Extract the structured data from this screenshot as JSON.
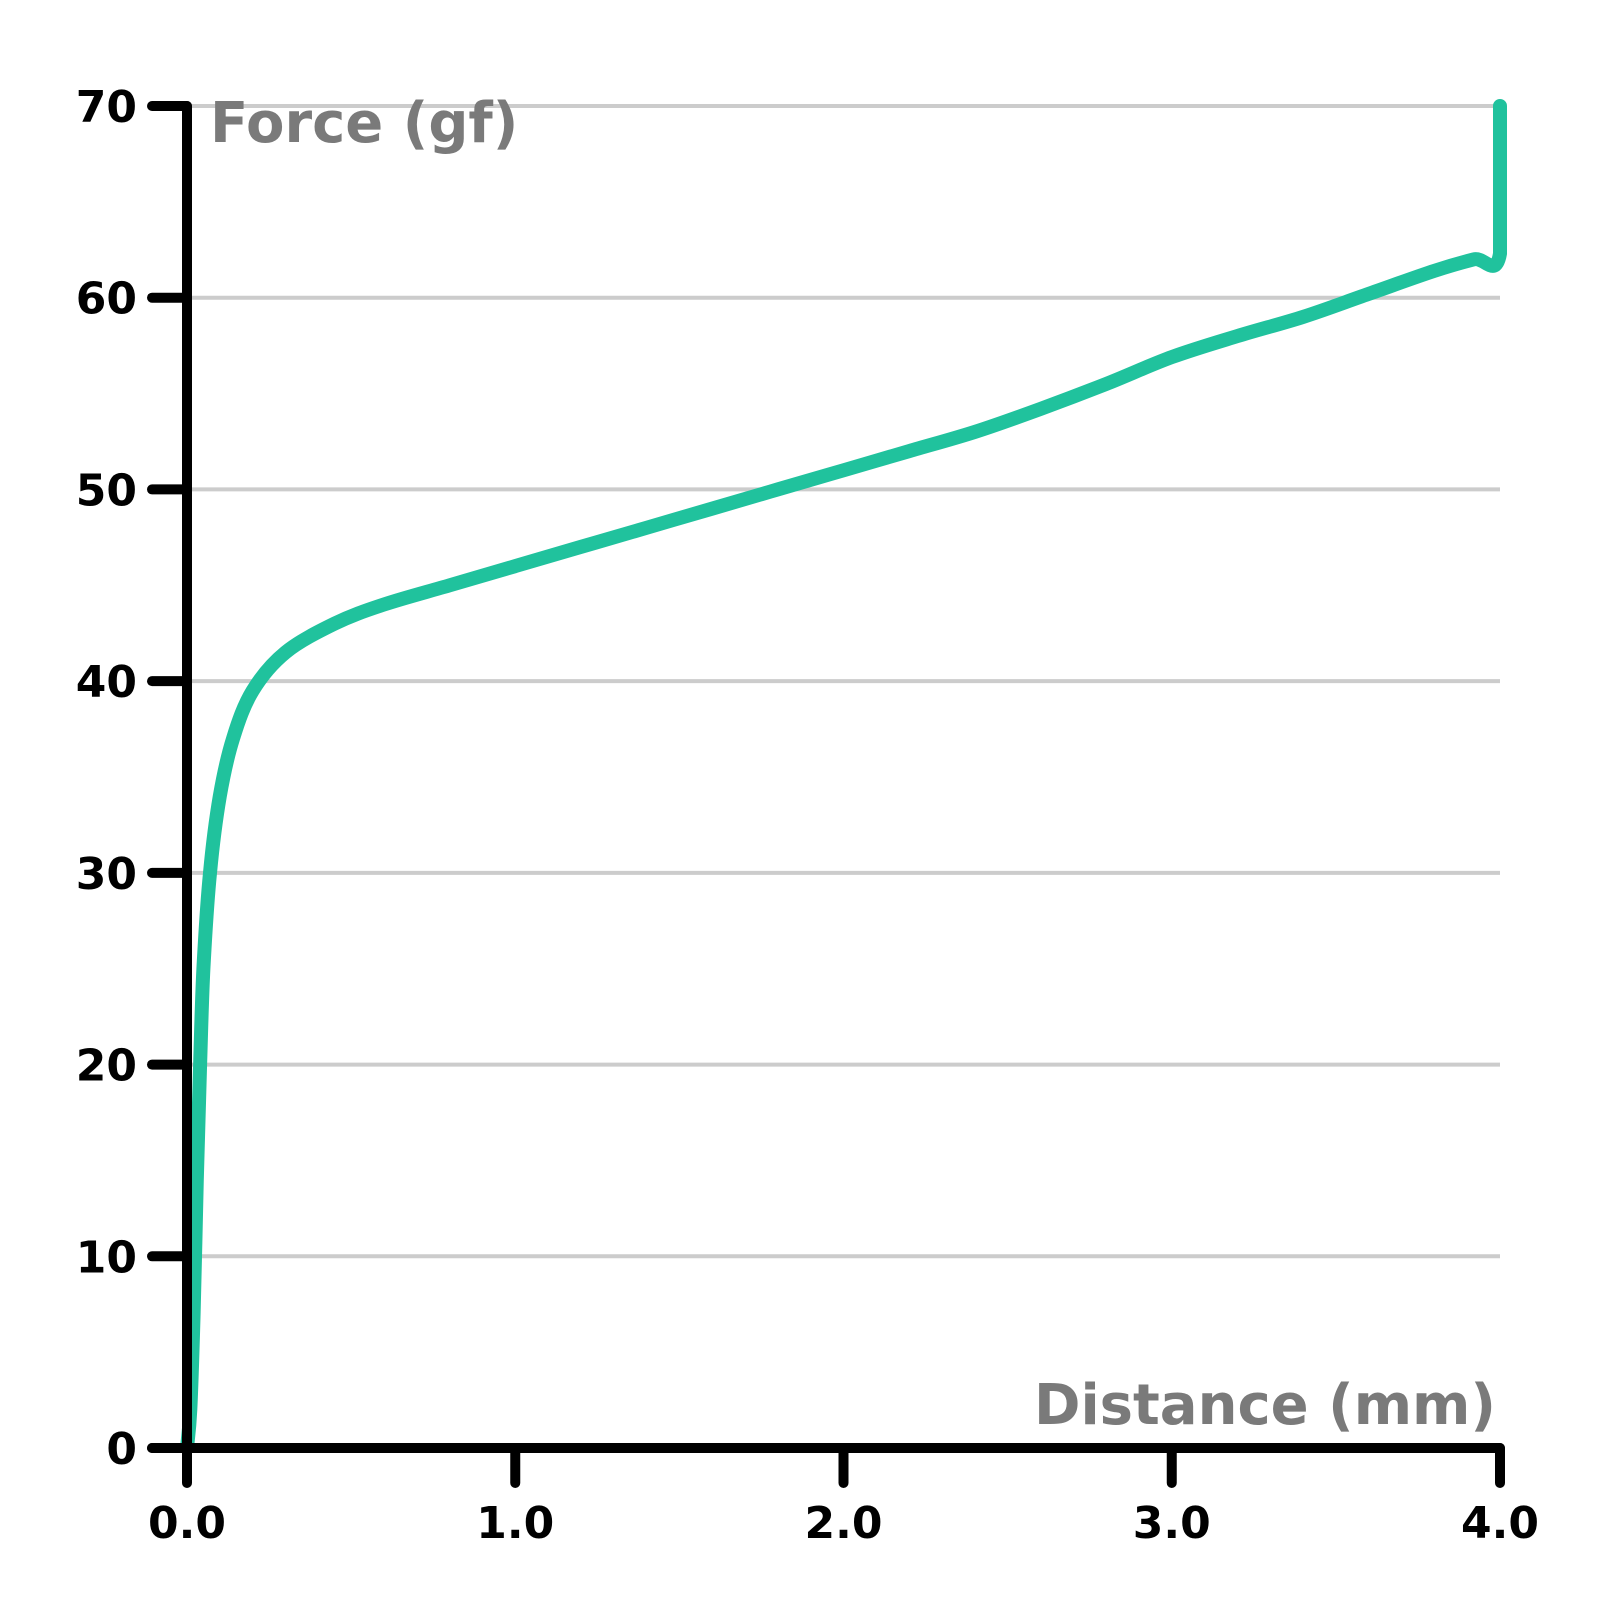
{
  "chart_data": {
    "type": "line",
    "xlabel": "Distance (mm)",
    "ylabel": "Force (gf)",
    "xlim": [
      0,
      4
    ],
    "ylim": [
      0,
      70
    ],
    "xticks": [
      0,
      1,
      2,
      3,
      4
    ],
    "xtick_labels": [
      "0.0",
      "1.0",
      "2.0",
      "3.0",
      "4.0"
    ],
    "yticks": [
      0,
      10,
      20,
      30,
      40,
      50,
      60,
      70
    ],
    "ytick_labels": [
      "0",
      "10",
      "20",
      "30",
      "40",
      "50",
      "60",
      "70"
    ],
    "grid": "horizontal",
    "legend": "none",
    "colors": {
      "line": "#20c29d",
      "grid": "#cccccc",
      "axis": "#000000",
      "axis_title": "#7a7a7a",
      "tick_label": "#000000"
    },
    "series": [
      {
        "x": [
          0.0,
          0.01,
          0.02,
          0.03,
          0.04,
          0.05,
          0.07,
          0.1,
          0.14,
          0.2,
          0.3,
          0.45,
          0.6,
          0.8,
          1.0,
          1.2,
          1.4,
          1.6,
          1.8,
          2.0,
          2.2,
          2.4,
          2.6,
          2.8,
          3.0,
          3.2,
          3.4,
          3.6,
          3.8,
          3.92,
          4.0,
          4.0
        ],
        "y": [
          0.0,
          2.0,
          7.0,
          14.0,
          20.0,
          25.0,
          30.0,
          34.0,
          37.0,
          39.5,
          41.5,
          43.0,
          44.0,
          45.0,
          46.0,
          47.0,
          48.0,
          49.0,
          50.0,
          51.0,
          52.0,
          53.0,
          54.2,
          55.5,
          56.9,
          58.0,
          59.0,
          60.2,
          61.4,
          62.0,
          62.3,
          70.0
        ]
      }
    ]
  }
}
